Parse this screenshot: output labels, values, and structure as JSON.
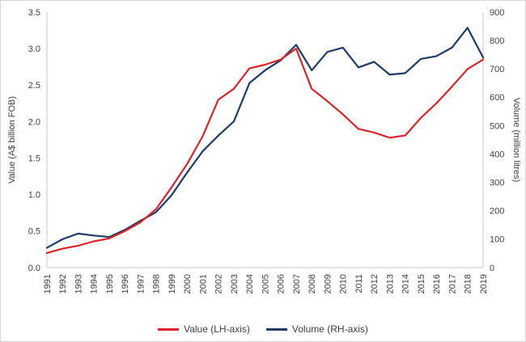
{
  "chart_data": {
    "type": "line",
    "categories": [
      "1991",
      "1992",
      "1993",
      "1994",
      "1995",
      "1996",
      "1997",
      "1998",
      "1999",
      "2000",
      "2001",
      "2002",
      "2003",
      "2004",
      "2005",
      "2006",
      "2007",
      "2008",
      "2009",
      "2010",
      "2011",
      "2012",
      "2013",
      "2014",
      "2015",
      "2016",
      "2017",
      "2018",
      "2019"
    ],
    "series": [
      {
        "name": "Value",
        "legend_label": "Value (LH-axis)",
        "axis": "left",
        "color": "#d9242b",
        "values": [
          0.2,
          0.26,
          0.3,
          0.36,
          0.4,
          0.5,
          0.62,
          0.8,
          1.1,
          1.42,
          1.8,
          2.3,
          2.45,
          2.73,
          2.78,
          2.85,
          3.0,
          2.45,
          2.28,
          2.1,
          1.9,
          1.85,
          1.78,
          1.81,
          2.05,
          2.25,
          2.48,
          2.72,
          2.85
        ]
      },
      {
        "name": "Volume",
        "legend_label": "Volume (RH-axis)",
        "axis": "right",
        "color": "#1f3b66",
        "values": [
          70,
          100,
          120,
          113,
          108,
          133,
          165,
          195,
          255,
          335,
          410,
          465,
          515,
          650,
          695,
          730,
          785,
          695,
          760,
          775,
          705,
          725,
          680,
          685,
          735,
          745,
          775,
          845,
          740
        ]
      }
    ],
    "left_axis": {
      "title": "Value (A$ billion FOB)",
      "min": 0,
      "max": 3.5,
      "step": 0.5,
      "tick_labels": [
        "0.0",
        "0.5",
        "1.0",
        "1.5",
        "2.0",
        "2.5",
        "3.0",
        "3.5"
      ]
    },
    "right_axis": {
      "title": "Volume (million litres)",
      "min": 0,
      "max": 900,
      "step": 100,
      "tick_labels": [
        "0",
        "100",
        "200",
        "300",
        "400",
        "500",
        "600",
        "700",
        "800",
        "900"
      ]
    },
    "grid": false,
    "legend_position": "bottom"
  },
  "colors": {
    "axis_line": "#c9c9c9",
    "text": "#404040",
    "background": "#ffffff"
  }
}
